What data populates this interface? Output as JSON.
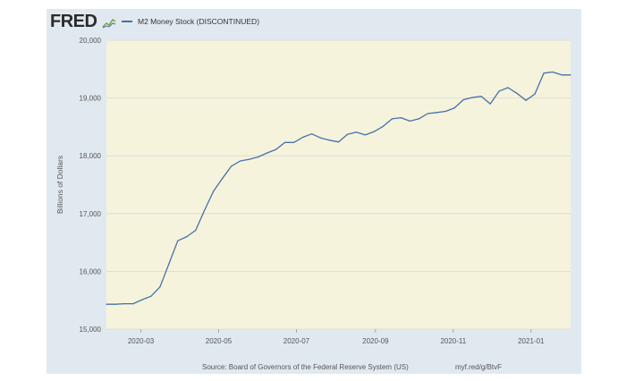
{
  "header": {
    "logo_text": "FRED",
    "legend_label": "M2 Money Stock (DISCONTINUED)"
  },
  "footer": {
    "source": "Source: Board of Governors of the Federal Reserve System (US)",
    "shortlink": "myf.red/g/BtvF"
  },
  "colors": {
    "plot_background": "#f6f3dc",
    "frame_background": "#e1e9f0",
    "series_line": "#4572a7",
    "gridline": "#d8d8d8"
  },
  "chart_data": {
    "type": "line",
    "ylabel": "Billions of Dollars",
    "xlabel": "",
    "ylim": [
      15000,
      20000
    ],
    "yticks": [
      "15,000",
      "16,000",
      "17,000",
      "18,000",
      "19,000",
      "20,000"
    ],
    "xticks": [
      {
        "date": "2020-03-01",
        "label": "2020-03"
      },
      {
        "date": "2020-05-01",
        "label": "2020-05"
      },
      {
        "date": "2020-07-01",
        "label": "2020-07"
      },
      {
        "date": "2020-09-01",
        "label": "2020-09"
      },
      {
        "date": "2020-11-01",
        "label": "2020-11"
      },
      {
        "date": "2021-01-01",
        "label": "2021-01"
      }
    ],
    "xlim": [
      "2020-02-03",
      "2021-02-01"
    ],
    "grid": true,
    "legend": "top-left",
    "series": [
      {
        "name": "M2 Money Stock (DISCONTINUED)",
        "points": [
          [
            "2020-02-03",
            15430
          ],
          [
            "2020-02-10",
            15430
          ],
          [
            "2020-02-17",
            15440
          ],
          [
            "2020-02-24",
            15440
          ],
          [
            "2020-03-02",
            15510
          ],
          [
            "2020-03-09",
            15570
          ],
          [
            "2020-03-16",
            15730
          ],
          [
            "2020-03-23",
            16130
          ],
          [
            "2020-03-30",
            16530
          ],
          [
            "2020-04-06",
            16600
          ],
          [
            "2020-04-13",
            16710
          ],
          [
            "2020-04-20",
            17060
          ],
          [
            "2020-04-27",
            17390
          ],
          [
            "2020-05-04",
            17610
          ],
          [
            "2020-05-11",
            17820
          ],
          [
            "2020-05-18",
            17910
          ],
          [
            "2020-05-25",
            17940
          ],
          [
            "2020-06-01",
            17980
          ],
          [
            "2020-06-08",
            18050
          ],
          [
            "2020-06-15",
            18110
          ],
          [
            "2020-06-22",
            18230
          ],
          [
            "2020-06-29",
            18230
          ],
          [
            "2020-07-06",
            18320
          ],
          [
            "2020-07-13",
            18380
          ],
          [
            "2020-07-20",
            18310
          ],
          [
            "2020-07-27",
            18270
          ],
          [
            "2020-08-03",
            18240
          ],
          [
            "2020-08-10",
            18370
          ],
          [
            "2020-08-17",
            18410
          ],
          [
            "2020-08-24",
            18360
          ],
          [
            "2020-08-31",
            18420
          ],
          [
            "2020-09-07",
            18510
          ],
          [
            "2020-09-14",
            18640
          ],
          [
            "2020-09-21",
            18660
          ],
          [
            "2020-09-28",
            18600
          ],
          [
            "2020-10-05",
            18640
          ],
          [
            "2020-10-12",
            18730
          ],
          [
            "2020-10-19",
            18750
          ],
          [
            "2020-10-26",
            18770
          ],
          [
            "2020-11-02",
            18830
          ],
          [
            "2020-11-09",
            18970
          ],
          [
            "2020-11-16",
            19010
          ],
          [
            "2020-11-23",
            19030
          ],
          [
            "2020-11-30",
            18900
          ],
          [
            "2020-12-07",
            19120
          ],
          [
            "2020-12-14",
            19180
          ],
          [
            "2020-12-21",
            19080
          ],
          [
            "2020-12-28",
            18960
          ],
          [
            "2021-01-04",
            19070
          ],
          [
            "2021-01-11",
            19430
          ],
          [
            "2021-01-18",
            19450
          ],
          [
            "2021-01-25",
            19400
          ],
          [
            "2021-02-01",
            19400
          ]
        ]
      }
    ]
  }
}
